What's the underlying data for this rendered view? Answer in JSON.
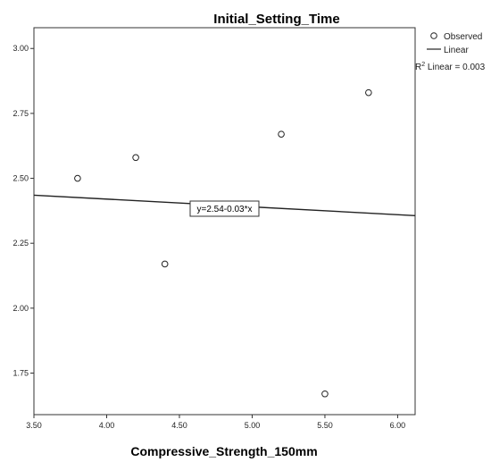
{
  "chart_data": {
    "type": "scatter",
    "title": "Initial_Setting_Time",
    "xlabel": "Compressive_Strength_150mm",
    "ylabel": "",
    "xlim": [
      3.5,
      6.12
    ],
    "ylim": [
      1.59,
      3.08
    ],
    "xticks": [
      3.5,
      4.0,
      4.5,
      5.0,
      5.5,
      6.0
    ],
    "xtick_labels": [
      "3.50",
      "4.00",
      "4.50",
      "5.00",
      "5.50",
      "6.00"
    ],
    "yticks": [
      1.75,
      2.0,
      2.25,
      2.5,
      2.75,
      3.0
    ],
    "ytick_labels": [
      "1.75",
      "2.00",
      "2.25",
      "2.50",
      "2.75",
      "3.00"
    ],
    "grid": false,
    "legend_position": "right",
    "legend": {
      "observed": "Observed",
      "linear": "Linear"
    },
    "series": [
      {
        "name": "Observed",
        "marker": "open-circle",
        "points": [
          {
            "x": 3.8,
            "y": 2.5
          },
          {
            "x": 4.2,
            "y": 2.58
          },
          {
            "x": 4.4,
            "y": 2.17
          },
          {
            "x": 5.2,
            "y": 2.67
          },
          {
            "x": 5.5,
            "y": 1.67
          },
          {
            "x": 5.8,
            "y": 2.83
          }
        ]
      },
      {
        "name": "Linear",
        "fit": {
          "intercept": 2.54,
          "slope": -0.03
        }
      }
    ],
    "annotations": {
      "equation": "y=2.54-0.03*x",
      "r2_prefix": "R",
      "r2_sup": "2",
      "r2_suffix": " Linear = 0.003"
    }
  }
}
